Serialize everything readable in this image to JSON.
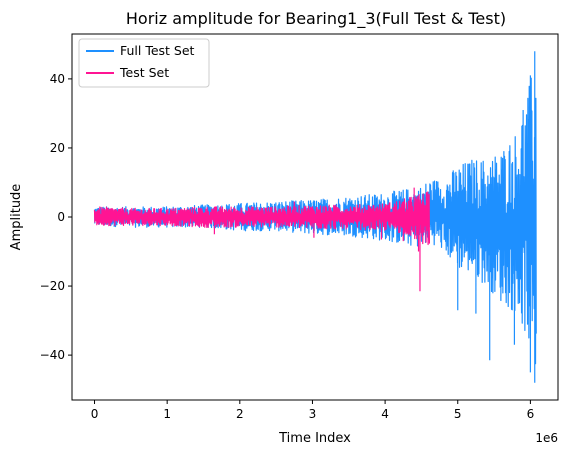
{
  "chart_data": {
    "type": "line",
    "title": "Horiz amplitude for Bearing1_3(Full Test & Test)",
    "xlabel": "Time Index",
    "ylabel": "Amplitude",
    "x_offset_label": "1e6",
    "xlim": [
      -0.31,
      6.38
    ],
    "ylim": [
      -53,
      53
    ],
    "x_ticks": [
      0,
      1,
      2,
      3,
      4,
      5,
      6
    ],
    "y_ticks": [
      -40,
      -20,
      0,
      20,
      40
    ],
    "x_tick_labels": [
      "0",
      "1",
      "2",
      "3",
      "4",
      "5",
      "6"
    ],
    "y_tick_labels": [
      "−40",
      "−20",
      "0",
      "20",
      "40"
    ],
    "legend_position": "upper-left",
    "series": [
      {
        "name": "Full Test Set",
        "color": "#1e90ff",
        "envelope": [
          {
            "x": 0.0,
            "lo": -2.5,
            "hi": 3.0
          },
          {
            "x": 0.5,
            "lo": -3.0,
            "hi": 3.0
          },
          {
            "x": 1.0,
            "lo": -3.0,
            "hi": 3.0
          },
          {
            "x": 1.5,
            "lo": -3.0,
            "hi": 3.5
          },
          {
            "x": 2.0,
            "lo": -4.0,
            "hi": 4.0
          },
          {
            "x": 2.5,
            "lo": -4.0,
            "hi": 4.5
          },
          {
            "x": 3.0,
            "lo": -5.0,
            "hi": 5.0
          },
          {
            "x": 3.5,
            "lo": -5.5,
            "hi": 6.0
          },
          {
            "x": 4.0,
            "lo": -7.0,
            "hi": 7.0
          },
          {
            "x": 4.5,
            "lo": -9.0,
            "hi": 9.0
          },
          {
            "x": 4.61,
            "lo": -7.0,
            "hi": 11.0
          },
          {
            "x": 4.8,
            "lo": -10.0,
            "hi": 11.0
          },
          {
            "x": 5.0,
            "lo": -15.0,
            "hi": 15.0
          },
          {
            "x": 5.2,
            "lo": -17.0,
            "hi": 17.0
          },
          {
            "x": 5.4,
            "lo": -20.0,
            "hi": 17.0
          },
          {
            "x": 5.6,
            "lo": -25.0,
            "hi": 20.0
          },
          {
            "x": 5.8,
            "lo": -28.0,
            "hi": 25.0
          },
          {
            "x": 5.95,
            "lo": -35.0,
            "hi": 35.0
          },
          {
            "x": 6.08,
            "lo": -48.0,
            "hi": 48.0
          }
        ],
        "spikes": [
          {
            "x": 5.0,
            "y": -27.0
          },
          {
            "x": 5.25,
            "y": -28.0
          },
          {
            "x": 5.44,
            "y": -41.5
          },
          {
            "x": 5.78,
            "y": -37.0
          },
          {
            "x": 6.0,
            "y": -45.0
          },
          {
            "x": 6.06,
            "y": -48.0
          },
          {
            "x": 6.06,
            "y": 48.0
          },
          {
            "x": 6.0,
            "y": 41.0
          },
          {
            "x": 5.9,
            "y": 31.0
          }
        ]
      },
      {
        "name": "Test Set",
        "color": "#ff1493",
        "envelope": [
          {
            "x": 0.0,
            "lo": -2.5,
            "hi": 3.0
          },
          {
            "x": 0.5,
            "lo": -2.5,
            "hi": 2.5
          },
          {
            "x": 1.0,
            "lo": -2.5,
            "hi": 2.5
          },
          {
            "x": 1.5,
            "lo": -3.0,
            "hi": 3.0
          },
          {
            "x": 2.0,
            "lo": -3.0,
            "hi": 3.0
          },
          {
            "x": 2.5,
            "lo": -3.0,
            "hi": 3.0
          },
          {
            "x": 3.0,
            "lo": -3.5,
            "hi": 3.5
          },
          {
            "x": 3.5,
            "lo": -3.5,
            "hi": 3.5
          },
          {
            "x": 4.0,
            "lo": -4.0,
            "hi": 4.0
          },
          {
            "x": 4.3,
            "lo": -5.0,
            "hi": 5.5
          },
          {
            "x": 4.5,
            "lo": -8.0,
            "hi": 7.0
          },
          {
            "x": 4.61,
            "lo": -8.0,
            "hi": 7.5
          }
        ],
        "spikes": [
          {
            "x": 1.65,
            "y": -5.0
          },
          {
            "x": 3.02,
            "y": -6.0
          },
          {
            "x": 2.75,
            "y": 4.5
          },
          {
            "x": 3.95,
            "y": -6.5
          },
          {
            "x": 4.25,
            "y": -7.0
          },
          {
            "x": 4.4,
            "y": 8.5
          },
          {
            "x": 4.46,
            "y": -10.0
          },
          {
            "x": 4.48,
            "y": -21.5
          }
        ]
      }
    ]
  }
}
